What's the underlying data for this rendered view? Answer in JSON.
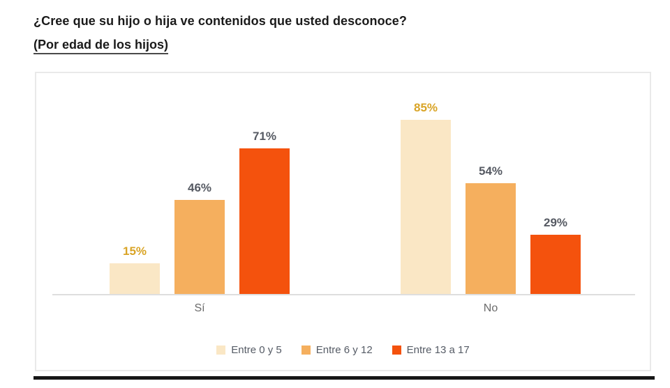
{
  "title": "¿Cree que su hijo o hija ve contenidos que usted desconoce?",
  "subtitle": "(Por edad de los hijos)",
  "chart_data": {
    "type": "bar",
    "categories": [
      "Sí",
      "No"
    ],
    "series": [
      {
        "name": "Entre 0 y 5",
        "values": [
          15,
          85
        ],
        "color": "#FAE7C5",
        "label_color": "#D9A426"
      },
      {
        "name": "Entre 6 y 12",
        "values": [
          46,
          54
        ],
        "color": "#F5AF5E",
        "label_color": "#565A63"
      },
      {
        "name": "Entre 13 a 17",
        "values": [
          71,
          29
        ],
        "color": "#F4520D",
        "label_color": "#565A63"
      }
    ],
    "value_suffix": "%",
    "ylim": [
      0,
      100
    ],
    "grid": false,
    "legend_position": "bottom",
    "colors": {
      "axis_line": "#DEDEDE",
      "frame_border": "#E9E9E9",
      "category_label": "#6B6B6B",
      "legend_text": "#555B65",
      "title_text": "#1A1A1A"
    }
  }
}
